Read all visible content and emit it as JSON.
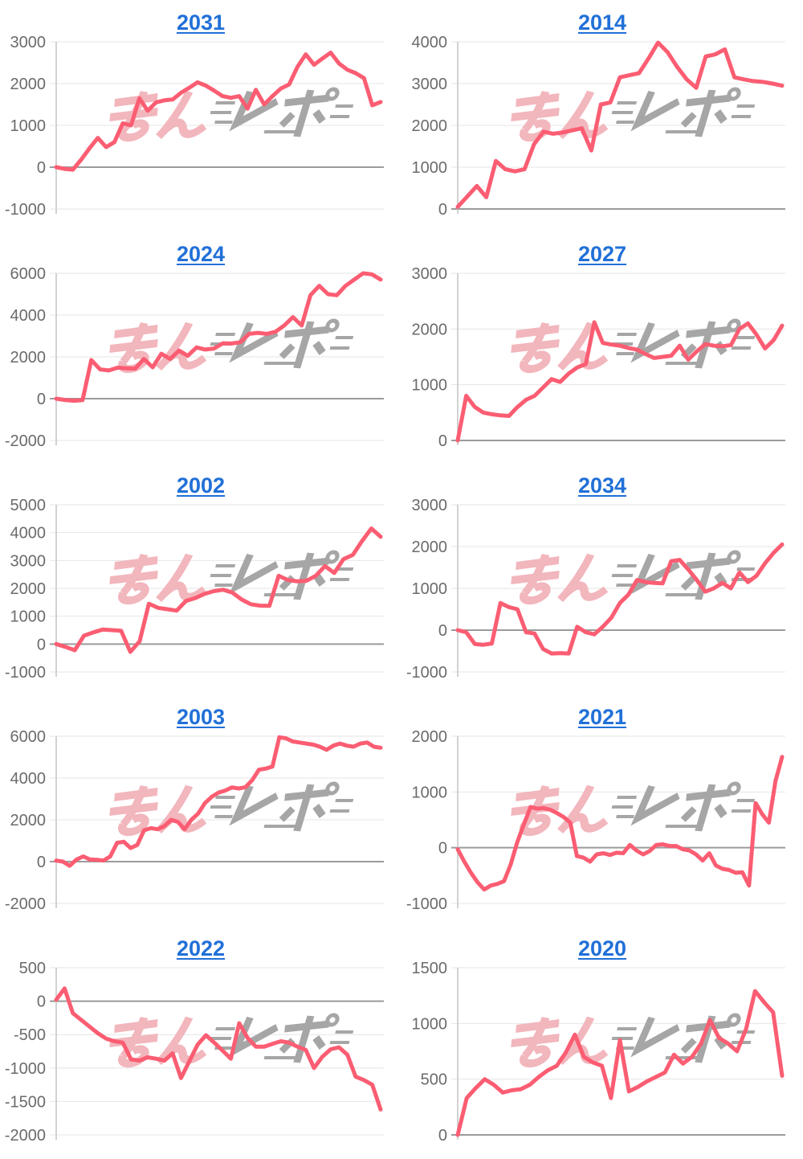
{
  "watermark": {
    "pink_text": "みん",
    "gray_text": "レポ"
  },
  "colors": {
    "line": "#fb5d72",
    "title_link": "#2170d8",
    "tick_label": "#6b6b6b",
    "gridline": "#e6e6e6",
    "zero_line": "#9b9b9b",
    "axis_line": "#c4c4c4",
    "watermark_pink": "#f2b6bd",
    "watermark_gray": "#a6a6a6",
    "background": "#ffffff"
  },
  "chart_data": [
    {
      "type": "line",
      "title": "2031",
      "ylabel": "",
      "xlabel": "",
      "ylim": [
        -1000,
        3000
      ],
      "yticks": [
        3000,
        2000,
        1000,
        0,
        -1000
      ],
      "values": [
        0,
        -40,
        -60,
        180,
        450,
        700,
        480,
        600,
        1050,
        1000,
        1650,
        1350,
        1550,
        1600,
        1620,
        1780,
        1900,
        2030,
        1950,
        1830,
        1700,
        1660,
        1700,
        1400,
        1850,
        1500,
        1700,
        1880,
        1980,
        2400,
        2700,
        2450,
        2600,
        2740,
        2480,
        2330,
        2250,
        2130,
        1480,
        1560
      ]
    },
    {
      "type": "line",
      "title": "2014",
      "ylabel": "",
      "xlabel": "",
      "ylim": [
        0,
        4000
      ],
      "yticks": [
        4000,
        3000,
        2000,
        1000,
        0
      ],
      "values": [
        50,
        300,
        550,
        280,
        1150,
        950,
        900,
        950,
        1550,
        1850,
        1800,
        1830,
        1880,
        1930,
        1400,
        2500,
        2550,
        3150,
        3200,
        3250,
        3600,
        3980,
        3750,
        3400,
        3100,
        2900,
        3650,
        3700,
        3820,
        3150,
        3100,
        3060,
        3040,
        3000,
        2950
      ]
    },
    {
      "type": "line",
      "title": "2024",
      "ylabel": "",
      "xlabel": "",
      "ylim": [
        -2000,
        6000
      ],
      "yticks": [
        6000,
        4000,
        2000,
        0,
        -2000
      ],
      "values": [
        0,
        -60,
        -100,
        -70,
        1850,
        1400,
        1350,
        1480,
        1450,
        1440,
        1900,
        1500,
        2150,
        1900,
        2300,
        2050,
        2450,
        2350,
        2400,
        2650,
        2640,
        2700,
        3100,
        3150,
        3100,
        3200,
        3500,
        3900,
        3500,
        4950,
        5400,
        5000,
        4950,
        5400,
        5700,
        6000,
        5950,
        5700
      ]
    },
    {
      "type": "line",
      "title": "2027",
      "ylabel": "",
      "xlabel": "",
      "ylim": [
        0,
        3000
      ],
      "yticks": [
        3000,
        2000,
        1000,
        0
      ],
      "values": [
        0,
        800,
        600,
        500,
        470,
        450,
        440,
        600,
        730,
        800,
        950,
        1100,
        1050,
        1200,
        1310,
        1370,
        2120,
        1750,
        1720,
        1700,
        1660,
        1630,
        1550,
        1480,
        1500,
        1520,
        1700,
        1450,
        1600,
        1730,
        1700,
        1690,
        1710,
        2000,
        2100,
        1900,
        1650,
        1800,
        2060
      ]
    },
    {
      "type": "line",
      "title": "2002",
      "ylabel": "",
      "xlabel": "",
      "ylim": [
        -1000,
        5000
      ],
      "yticks": [
        5000,
        4000,
        3000,
        2000,
        1000,
        0,
        -1000
      ],
      "values": [
        0,
        -100,
        -220,
        300,
        420,
        520,
        500,
        480,
        -280,
        100,
        1450,
        1300,
        1250,
        1200,
        1550,
        1650,
        1800,
        1900,
        1950,
        1850,
        1600,
        1430,
        1380,
        1370,
        2450,
        2300,
        2250,
        2270,
        2450,
        2800,
        2550,
        3050,
        3200,
        3700,
        4150,
        3850
      ]
    },
    {
      "type": "line",
      "title": "2034",
      "ylabel": "",
      "xlabel": "",
      "ylim": [
        -1000,
        3000
      ],
      "yticks": [
        3000,
        2000,
        1000,
        0,
        -1000
      ],
      "values": [
        0,
        -50,
        -330,
        -350,
        -320,
        650,
        550,
        500,
        -50,
        -80,
        -450,
        -560,
        -550,
        -560,
        80,
        -50,
        -100,
        80,
        300,
        650,
        850,
        1200,
        1150,
        1130,
        1120,
        1650,
        1680,
        1450,
        1200,
        920,
        1000,
        1130,
        1000,
        1380,
        1150,
        1300,
        1600,
        1850,
        2050
      ]
    },
    {
      "type": "line",
      "title": "2003",
      "ylabel": "",
      "xlabel": "",
      "ylim": [
        -2000,
        6000
      ],
      "yticks": [
        6000,
        4000,
        2000,
        0,
        -2000
      ],
      "values": [
        50,
        0,
        -200,
        100,
        250,
        100,
        90,
        50,
        250,
        900,
        950,
        650,
        800,
        1500,
        1600,
        1550,
        1700,
        2000,
        1900,
        1550,
        2000,
        2300,
        2800,
        3100,
        3300,
        3400,
        3550,
        3500,
        3560,
        3900,
        4400,
        4450,
        4550,
        5950,
        5900,
        5750,
        5700,
        5650,
        5600,
        5500,
        5350,
        5550,
        5650,
        5550,
        5500,
        5650,
        5700,
        5500,
        5450
      ]
    },
    {
      "type": "line",
      "title": "2021",
      "ylabel": "",
      "xlabel": "",
      "ylim": [
        -1000,
        2000
      ],
      "yticks": [
        2000,
        1000,
        0,
        -1000
      ],
      "values": [
        -30,
        -250,
        -450,
        -620,
        -750,
        -680,
        -650,
        -600,
        -300,
        100,
        420,
        730,
        700,
        710,
        680,
        620,
        550,
        450,
        -150,
        -180,
        -250,
        -120,
        -100,
        -130,
        -90,
        -100,
        50,
        -50,
        -120,
        -60,
        50,
        60,
        30,
        30,
        -30,
        -50,
        -120,
        -230,
        -100,
        -320,
        -380,
        -400,
        -450,
        -440,
        -680,
        800,
        600,
        450,
        1200,
        1630
      ]
    },
    {
      "type": "line",
      "title": "2022",
      "ylabel": "",
      "xlabel": "",
      "ylim": [
        -2000,
        500
      ],
      "yticks": [
        500,
        0,
        -500,
        -1000,
        -1500,
        -2000
      ],
      "values": [
        20,
        190,
        -180,
        -280,
        -380,
        -480,
        -560,
        -600,
        -620,
        -870,
        -890,
        -840,
        -860,
        -890,
        -780,
        -1150,
        -900,
        -650,
        -510,
        -620,
        -740,
        -860,
        -330,
        -550,
        -680,
        -680,
        -640,
        -600,
        -620,
        -680,
        -730,
        -1000,
        -830,
        -720,
        -690,
        -800,
        -1130,
        -1180,
        -1250,
        -1620
      ]
    },
    {
      "type": "line",
      "title": "2020",
      "ylabel": "",
      "xlabel": "",
      "ylim": [
        0,
        1500
      ],
      "yticks": [
        1500,
        1000,
        500,
        0
      ],
      "values": [
        0,
        330,
        420,
        500,
        450,
        380,
        400,
        410,
        450,
        520,
        580,
        620,
        740,
        900,
        700,
        650,
        620,
        330,
        850,
        390,
        430,
        480,
        520,
        560,
        720,
        640,
        700,
        820,
        1030,
        870,
        820,
        750,
        950,
        1290,
        1190,
        1100,
        530
      ]
    }
  ]
}
